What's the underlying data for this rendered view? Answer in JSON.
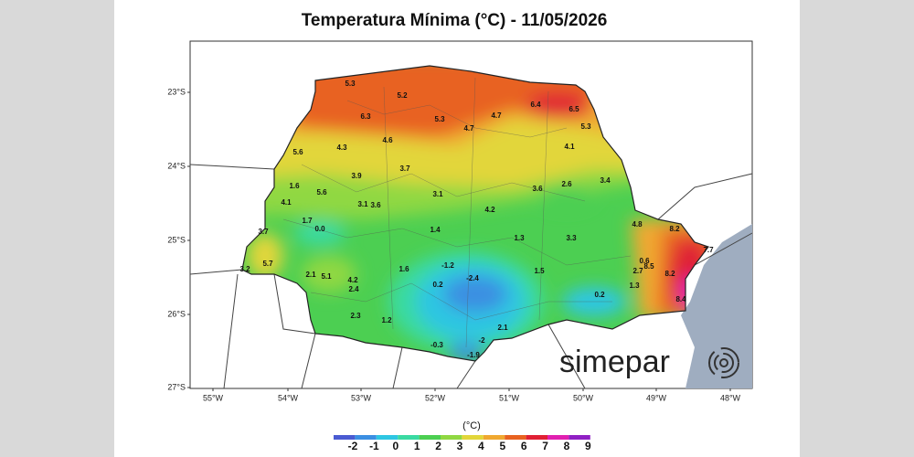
{
  "title": "Temperatura Mínima (°C) - 11/05/2026",
  "lat_labels": [
    "23°S",
    "24°S",
    "25°S",
    "26°S",
    "27°S"
  ],
  "lon_labels": [
    "55°W",
    "54°W",
    "53°W",
    "52°W",
    "51°W",
    "50°W",
    "49°W",
    "48°W"
  ],
  "stations": [
    "5.3",
    "5.2",
    "6.3",
    "5.3",
    "4.7",
    "6.4",
    "6.5",
    "5.3",
    "4.7",
    "4.6",
    "4.3",
    "5.6",
    "4.1",
    "3.7",
    "3.9",
    "3.4",
    "1.6",
    "5.6",
    "2.6",
    "3.6",
    "3.1",
    "4.1",
    "3.1",
    "3.6",
    "4.2",
    "1.7",
    "0.0",
    "1.4",
    "4.8",
    "3.7",
    "1.3",
    "3.3",
    "8.2",
    "7.7",
    "0.6",
    "8.5",
    "2.7",
    "8.2",
    "5.7",
    "2.1",
    "5.1",
    "1.6",
    "-1.2",
    "1.5",
    "3.2",
    "4.2",
    "-2.4",
    "0.2",
    "1.3",
    "2.4",
    "0.2",
    "8.4",
    "2.3",
    "1.2",
    "2.1",
    "-2",
    "-0.3",
    "-1.9"
  ],
  "colorbar": {
    "unit": "(°C)",
    "labels": [
      -2,
      -1,
      0,
      1,
      2,
      3,
      4,
      5,
      6,
      7,
      8,
      9
    ],
    "colors": [
      "#4a5bd2",
      "#3b8fe2",
      "#2ec6e2",
      "#3adaa2",
      "#4ccf52",
      "#90d842",
      "#e2d63a",
      "#f0a830",
      "#e86220",
      "#e02034",
      "#e020b0",
      "#9020c4"
    ]
  },
  "logo": "simepar"
}
